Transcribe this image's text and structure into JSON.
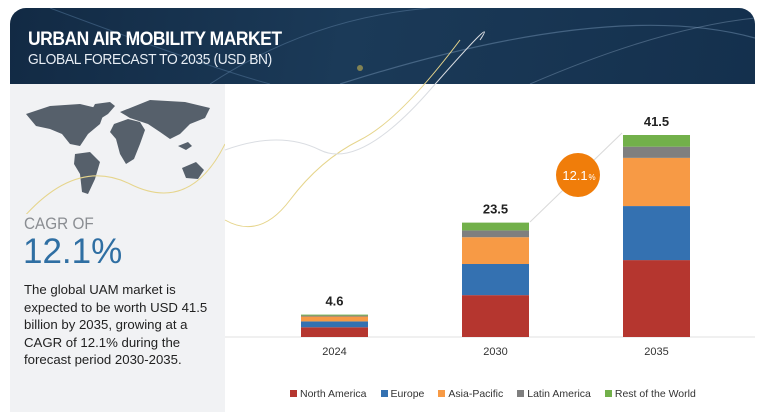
{
  "header": {
    "title": "URBAN AIR MOBILITY MARKET",
    "subtitle": "GLOBAL FORECAST TO 2035 (USD BN)"
  },
  "left": {
    "cagr_label": "CAGR OF",
    "cagr_value": "12.1%",
    "description": "The global UAM market is expected to be worth USD 41.5 billion by 2035, growing at a CAGR of 12.1% during the forecast period 2030-2035."
  },
  "bubble": {
    "value": "12.1",
    "unit": "%",
    "color": "#f07d0a"
  },
  "chart_data": {
    "type": "bar",
    "stacked": true,
    "title": "Urban Air Mobility Market, Global Forecast to 2035 (USD BN)",
    "categories": [
      "2024",
      "2030",
      "2035"
    ],
    "totals": [
      "4.6",
      "23.5",
      "41.5"
    ],
    "series": [
      {
        "name": "North America",
        "color": "#b5362f",
        "values": [
          2.0,
          8.6,
          15.8
        ]
      },
      {
        "name": "Europe",
        "color": "#3471b1",
        "values": [
          1.2,
          6.4,
          11.1
        ]
      },
      {
        "name": "Asia-Pacific",
        "color": "#f79a45",
        "values": [
          1.0,
          5.5,
          9.9
        ]
      },
      {
        "name": "Latin America",
        "color": "#7f7f7f",
        "values": [
          0.2,
          1.4,
          2.3
        ]
      },
      {
        "name": "Rest of the World",
        "color": "#72b04a",
        "values": [
          0.2,
          1.6,
          2.4
        ]
      }
    ],
    "ylim": [
      0,
      41.5
    ],
    "grid": false,
    "legend": "bottom"
  }
}
